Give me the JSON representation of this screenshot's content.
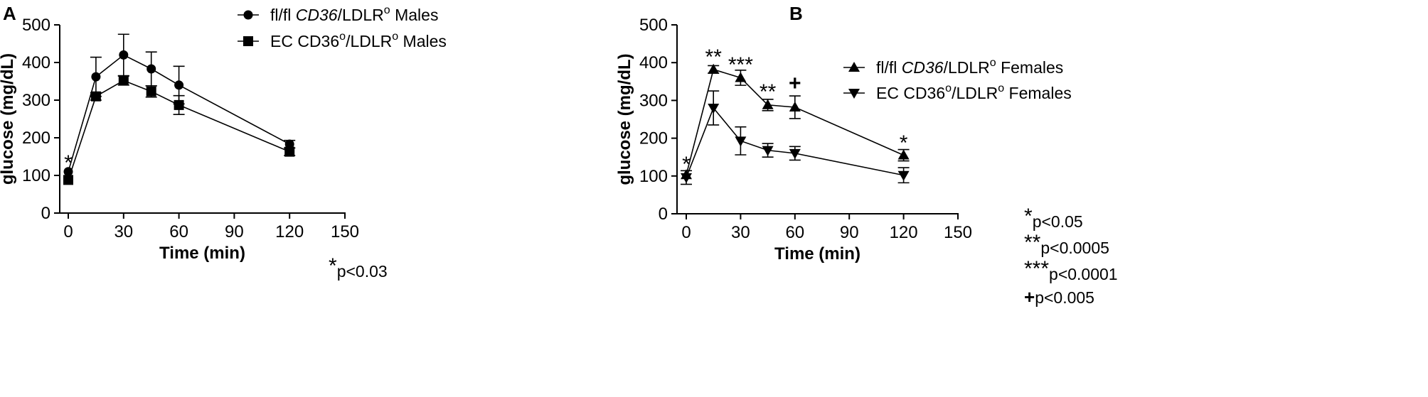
{
  "chart_data": [
    {
      "panel": "A",
      "type": "line",
      "x": [
        0,
        15,
        30,
        45,
        60,
        120
      ],
      "xlabel": "Time (min)",
      "ylabel": "glucose (mg/dL)",
      "xlim": [
        0,
        150
      ],
      "ylim": [
        0,
        500
      ],
      "xticks": [
        0,
        30,
        60,
        90,
        120,
        150
      ],
      "yticks": [
        0,
        100,
        200,
        300,
        400,
        500
      ],
      "grid": false,
      "legend_placement": "top-right",
      "series": [
        {
          "legend": {
            "pre": "fl/fl ",
            "italic": "CD36",
            "post": "/LDLR",
            "sup": "o",
            "tail": " Males"
          },
          "marker": "circle",
          "values": [
            110,
            362,
            420,
            383,
            340,
            183
          ],
          "errors": [
            0,
            52,
            55,
            45,
            50,
            10
          ]
        },
        {
          "legend": {
            "pre": "EC CD36",
            "sup1": "o",
            "mid": "/LDLR",
            "sup2": "o",
            "tail": " Males"
          },
          "marker": "square",
          "values": [
            88,
            310,
            352,
            323,
            287,
            163
          ],
          "errors": [
            0,
            10,
            12,
            15,
            25,
            10
          ]
        }
      ],
      "annotations": [
        {
          "x": 0,
          "text": "*"
        }
      ],
      "footnotes": [
        {
          "sym": "*",
          "text": "p<0.03"
        }
      ]
    },
    {
      "panel": "B",
      "type": "line",
      "x": [
        0,
        15,
        30,
        45,
        60,
        120
      ],
      "xlabel": "Time (min)",
      "ylabel": "glucose (mg/dL)",
      "xlim": [
        0,
        150
      ],
      "ylim": [
        0,
        500
      ],
      "xticks": [
        0,
        30,
        60,
        90,
        120,
        150
      ],
      "yticks": [
        0,
        100,
        200,
        300,
        400,
        500
      ],
      "grid": false,
      "legend_placement": "top-right",
      "series": [
        {
          "legend": {
            "pre": "fl/fl ",
            "italic": "CD36",
            "post": "/LDLR",
            "sup": "o",
            "tail": " Females"
          },
          "marker": "triangle-up",
          "values": [
            103,
            382,
            360,
            288,
            282,
            155
          ],
          "errors": [
            0,
            10,
            20,
            15,
            30,
            15
          ]
        },
        {
          "legend": {
            "pre": "EC CD36",
            "sup1": "o",
            "mid": "/LDLR",
            "sup2": "o",
            "tail": " Females"
          },
          "marker": "triangle-down",
          "values": [
            96,
            280,
            193,
            168,
            160,
            102
          ],
          "errors": [
            18,
            45,
            37,
            18,
            18,
            20
          ]
        }
      ],
      "annotations": [
        {
          "x": 0,
          "text": "*"
        },
        {
          "x": 15,
          "text": "**"
        },
        {
          "x": 30,
          "text": "***"
        },
        {
          "x": 45,
          "text": "**"
        },
        {
          "x": 60,
          "text": "+"
        },
        {
          "x": 120,
          "text": "*"
        }
      ],
      "footnotes": [
        {
          "sym": "*",
          "text": "p<0.05"
        },
        {
          "sym": "**",
          "text": "p<0.0005"
        },
        {
          "sym": "***",
          "text": "p<0.0001"
        },
        {
          "sym": "+",
          "text": "p<0.005"
        }
      ]
    }
  ]
}
